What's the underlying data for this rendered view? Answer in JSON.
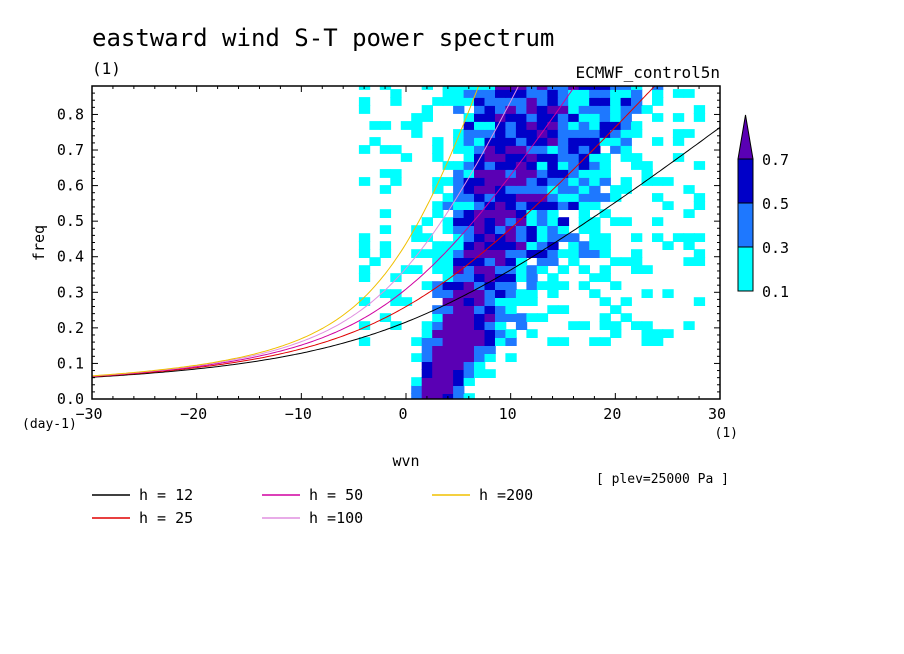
{
  "chart_data": {
    "type": "heatmap",
    "title": "eastward wind S-T power spectrum",
    "subtitle_left": "(1)",
    "subtitle_right": "ECMWF_control5n",
    "xlabel": "wvn",
    "ylabel": "freq",
    "x_unit": "(1)",
    "y_unit": "(day-1)",
    "annotation": "[ plev=25000 Pa ]",
    "xlim": [
      -30,
      30
    ],
    "ylim": [
      0,
      0.88
    ],
    "xticks": [
      -30,
      -20,
      -10,
      0,
      10,
      20,
      30
    ],
    "yticks": [
      0.0,
      0.1,
      0.2,
      0.3,
      0.4,
      0.5,
      0.6,
      0.7,
      0.8
    ],
    "colorbar": {
      "levels": [
        0.1,
        0.3,
        0.5,
        0.7
      ],
      "labels": [
        "0.1",
        "0.3",
        "0.5",
        "0.7"
      ],
      "colors": [
        "#00ffff",
        "#1e78ff",
        "#0000c8",
        "#5a00b4"
      ]
    },
    "contour_fill": {
      "main_band_centers": [
        {
          "freq": 0.02,
          "wvn": 2.5
        },
        {
          "freq": 0.1,
          "wvn": 3.2
        },
        {
          "freq": 0.2,
          "wvn": 4.5
        },
        {
          "freq": 0.3,
          "wvn": 5.2
        },
        {
          "freq": 0.4,
          "wvn": 5.8
        },
        {
          "freq": 0.5,
          "wvn": 6.5
        },
        {
          "freq": 0.6,
          "wvn": 7.2
        },
        {
          "freq": 0.7,
          "wvn": 7.8
        },
        {
          "freq": 0.8,
          "wvn": 8.3
        },
        {
          "freq": 0.88,
          "wvn": 8.6
        }
      ]
    },
    "dispersion_curves": [
      {
        "label": "h = 12",
        "h": 12,
        "color": "#000000"
      },
      {
        "label": "h = 25",
        "h": 25,
        "color": "#e00000"
      },
      {
        "label": "h = 50",
        "h": 50,
        "color": "#d000a0"
      },
      {
        "label": "h =100",
        "h": 100,
        "color": "#e090e0"
      },
      {
        "label": "h =200",
        "h": 200,
        "color": "#f0c000"
      }
    ]
  }
}
